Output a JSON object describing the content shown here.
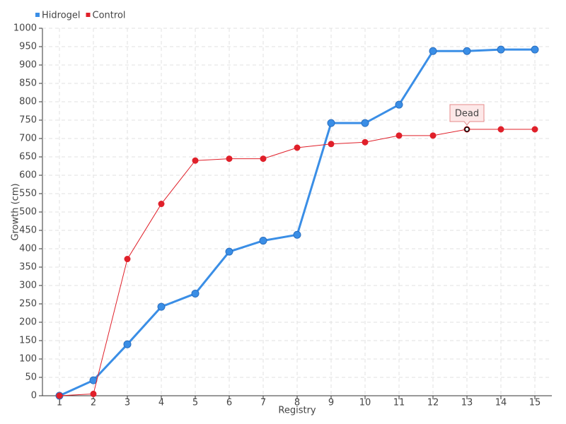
{
  "chart_data": {
    "type": "line",
    "x": [
      1,
      2,
      3,
      4,
      5,
      6,
      7,
      8,
      9,
      10,
      11,
      12,
      13,
      14,
      15
    ],
    "series": [
      {
        "name": "Hidrogel",
        "color": "#3a8ee6",
        "values": [
          0,
          42,
          140,
          242,
          278,
          392,
          422,
          438,
          742,
          742,
          792,
          938,
          938,
          942,
          942
        ]
      },
      {
        "name": "Control",
        "color": "#e0202a",
        "values": [
          0,
          5,
          372,
          522,
          640,
          645,
          645,
          675,
          685,
          690,
          708,
          708,
          725,
          725,
          725
        ]
      }
    ],
    "xlabel": "Registry",
    "ylabel": "Growth (cm)",
    "xlim": [
      0.5,
      15.5
    ],
    "xticks": [
      1,
      2,
      3,
      4,
      5,
      6,
      7,
      8,
      9,
      10,
      11,
      12,
      13,
      14,
      15
    ],
    "ylim": [
      0,
      1000
    ],
    "yticks": [
      0,
      50,
      100,
      150,
      200,
      250,
      300,
      350,
      400,
      450,
      500,
      550,
      600,
      650,
      700,
      750,
      800,
      850,
      900,
      950,
      1000
    ],
    "grid": true,
    "legend": "top-left",
    "annotations": [
      {
        "text": "Dead",
        "series": "Control",
        "x": 13
      }
    ]
  }
}
